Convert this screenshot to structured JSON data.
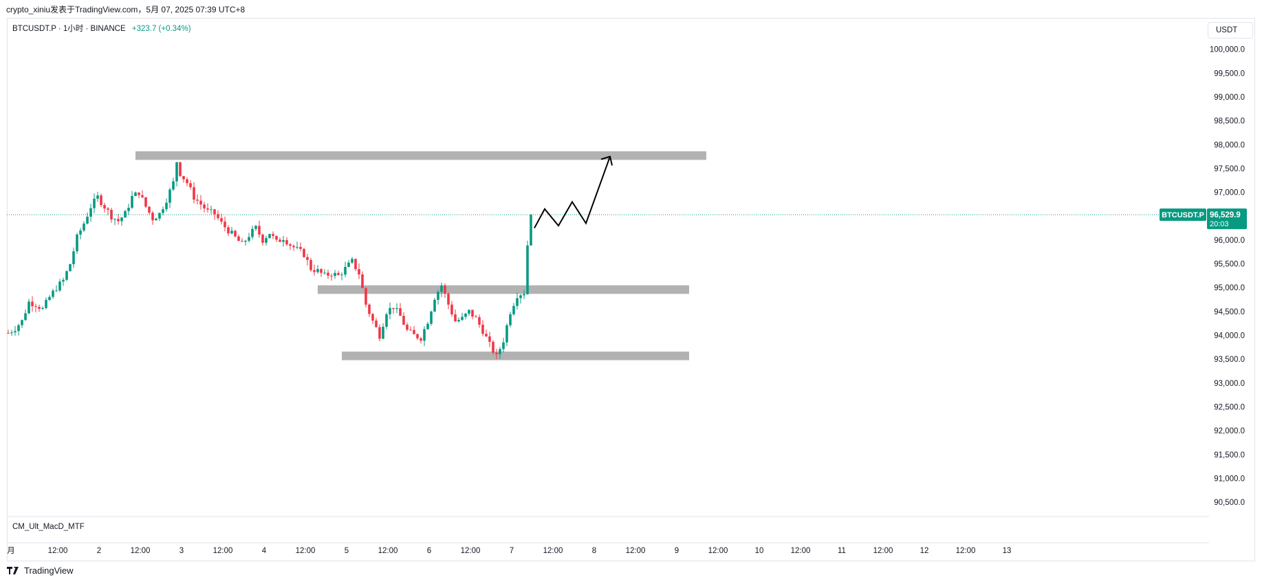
{
  "header": {
    "publish_text": "crypto_xiniu发表于TradingView.com，5月 07, 2025 07:39 UTC+8"
  },
  "legend": {
    "symbol_line": "BTCUSDT.P · 1小时 · BINANCE",
    "change": "+323.7 (+0.34%)"
  },
  "currency_button": "USDT",
  "indicator_label": "CM_Ult_MacD_MTF",
  "brand": "TradingView",
  "colors": {
    "up": "#089981",
    "down": "#f23645",
    "zone": "#b2b2b2",
    "price_line": "#089981"
  },
  "chart_data": {
    "type": "candlestick",
    "symbol": "BTCUSDT.P",
    "interval": "1小时",
    "exchange": "BINANCE",
    "ylim": [
      90200,
      100600
    ],
    "y_ticks": [
      "100,000.0",
      "99,500.0",
      "99,000.0",
      "98,500.0",
      "98,000.0",
      "97,500.0",
      "97,000.0",
      "96,500.0",
      "96,000.0",
      "95,500.0",
      "95,000.0",
      "94,500.0",
      "94,000.0",
      "93,500.0",
      "93,000.0",
      "92,500.0",
      "92,000.0",
      "91,500.0",
      "91,000.0",
      "90,500.0"
    ],
    "x_ticks": [
      "月",
      "12:00",
      "2",
      "12:00",
      "3",
      "12:00",
      "4",
      "12:00",
      "5",
      "12:00",
      "6",
      "12:00",
      "7",
      "12:00",
      "8",
      "12:00",
      "9",
      "12:00",
      "10",
      "12:00",
      "11",
      "12:00",
      "12",
      "12:00",
      "13"
    ],
    "x_tick_hours": [
      0,
      12,
      24,
      36,
      48,
      60,
      72,
      84,
      96,
      108,
      120,
      132,
      144,
      156,
      168,
      180,
      192,
      204,
      216,
      228,
      240,
      252,
      264,
      276,
      288
    ],
    "close_path": [
      [
        0,
        94050
      ],
      [
        2,
        94150
      ],
      [
        4,
        94300
      ],
      [
        6,
        94700
      ],
      [
        8,
        94650
      ],
      [
        10,
        94550
      ],
      [
        12,
        94800
      ],
      [
        14,
        95000
      ],
      [
        16,
        95150
      ],
      [
        18,
        95500
      ],
      [
        20,
        96050
      ],
      [
        22,
        96350
      ],
      [
        24,
        96700
      ],
      [
        26,
        96900
      ],
      [
        28,
        96700
      ],
      [
        30,
        96500
      ],
      [
        32,
        96400
      ],
      [
        34,
        96550
      ],
      [
        36,
        96900
      ],
      [
        38,
        97000
      ],
      [
        40,
        96700
      ],
      [
        42,
        96450
      ],
      [
        44,
        96550
      ],
      [
        46,
        96850
      ],
      [
        48,
        97200
      ],
      [
        49,
        97650
      ],
      [
        50,
        97400
      ],
      [
        52,
        97200
      ],
      [
        54,
        96900
      ],
      [
        56,
        96750
      ],
      [
        58,
        96600
      ],
      [
        60,
        96550
      ],
      [
        62,
        96350
      ],
      [
        64,
        96200
      ],
      [
        66,
        96050
      ],
      [
        68,
        95900
      ],
      [
        70,
        96100
      ],
      [
        72,
        96250
      ],
      [
        74,
        96000
      ],
      [
        76,
        96150
      ],
      [
        78,
        95950
      ],
      [
        80,
        96050
      ],
      [
        82,
        95900
      ],
      [
        84,
        95800
      ],
      [
        86,
        95700
      ],
      [
        88,
        95400
      ],
      [
        90,
        95350
      ],
      [
        92,
        95250
      ],
      [
        94,
        95300
      ],
      [
        96,
        95250
      ],
      [
        98,
        95400
      ],
      [
        100,
        95550
      ],
      [
        102,
        95300
      ],
      [
        104,
        94650
      ],
      [
        106,
        94300
      ],
      [
        108,
        94000
      ],
      [
        110,
        94500
      ],
      [
        112,
        94600
      ],
      [
        114,
        94400
      ],
      [
        116,
        94100
      ],
      [
        118,
        94000
      ],
      [
        120,
        93950
      ],
      [
        122,
        94300
      ],
      [
        124,
        94800
      ],
      [
        126,
        95050
      ],
      [
        128,
        94650
      ],
      [
        130,
        94300
      ],
      [
        132,
        94350
      ],
      [
        134,
        94500
      ],
      [
        136,
        94350
      ],
      [
        138,
        94100
      ],
      [
        140,
        93800
      ],
      [
        142,
        93550
      ],
      [
        144,
        93900
      ],
      [
        146,
        94500
      ],
      [
        148,
        94850
      ],
      [
        150,
        94900
      ],
      [
        151,
        95900
      ],
      [
        152,
        96529.9
      ]
    ],
    "last_price": "96,529.9",
    "countdown": "20:03",
    "last_label": "BTCUSDT.P",
    "zones": [
      {
        "y_top": 97860,
        "y_bottom": 97680,
        "x_start": 37,
        "x_end": 203
      },
      {
        "y_top": 95050,
        "y_bottom": 94870,
        "x_start": 90,
        "x_end": 198
      },
      {
        "y_top": 93660,
        "y_bottom": 93480,
        "x_start": 97,
        "x_end": 198
      }
    ],
    "projection": [
      [
        153,
        96250
      ],
      [
        156,
        96650
      ],
      [
        160,
        96300
      ],
      [
        164,
        96800
      ],
      [
        168,
        96350
      ],
      [
        175,
        97750
      ]
    ]
  }
}
